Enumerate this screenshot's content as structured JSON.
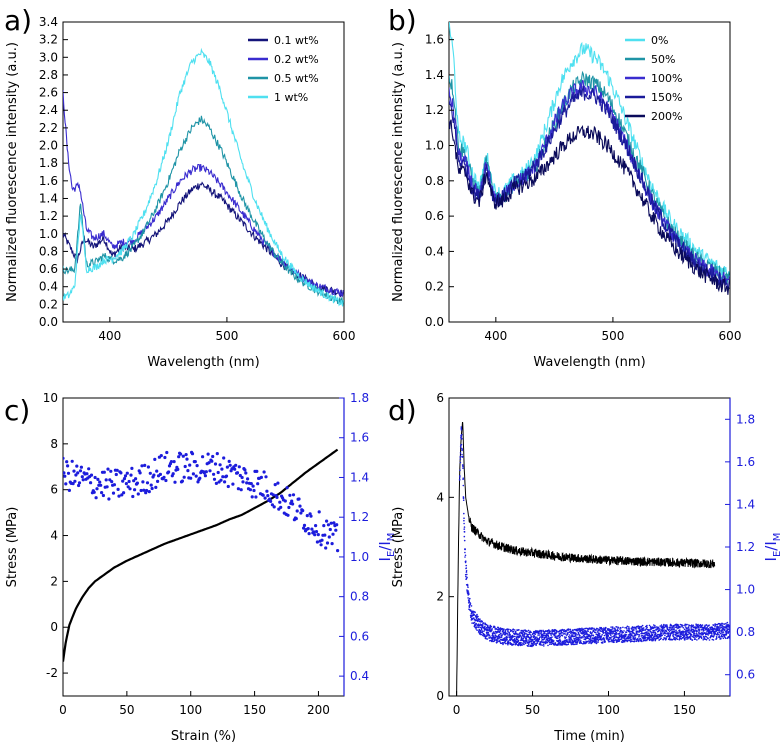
{
  "chart_data": [
    {
      "panel": "a)",
      "type": "line",
      "xlabel": "Wavelength (nm)",
      "ylabel": "Normalized fluorescence intensity (a.u.)",
      "xlim": [
        360,
        600
      ],
      "ylim": [
        0.0,
        3.4
      ],
      "xticks": [
        400,
        500,
        600
      ],
      "yticks": [
        0.0,
        0.2,
        0.4,
        0.6,
        0.8,
        1.0,
        1.2,
        1.4,
        1.6,
        1.8,
        2.0,
        2.2,
        2.4,
        2.6,
        2.8,
        3.0,
        3.2,
        3.4
      ],
      "legend_position": "top-right",
      "series": [
        {
          "name": "0.1 wt%",
          "color": "#14147a",
          "x": [
            360,
            366,
            372,
            378,
            386,
            395,
            402,
            410,
            420,
            430,
            440,
            450,
            460,
            470,
            478,
            485,
            495,
            505,
            515,
            525,
            535,
            545,
            555,
            565,
            575,
            585,
            592,
            600
          ],
          "y": [
            1.0,
            0.85,
            0.7,
            0.95,
            0.85,
            0.95,
            0.75,
            0.85,
            0.82,
            0.9,
            1.0,
            1.15,
            1.35,
            1.5,
            1.57,
            1.5,
            1.4,
            1.25,
            1.1,
            0.95,
            0.82,
            0.68,
            0.58,
            0.5,
            0.42,
            0.38,
            0.35,
            0.32
          ]
        },
        {
          "name": "0.2 wt%",
          "color": "#3a2ccf",
          "x": [
            360,
            364,
            368,
            374,
            380,
            386,
            395,
            402,
            410,
            420,
            430,
            440,
            450,
            460,
            470,
            478,
            485,
            495,
            505,
            515,
            525,
            535,
            545,
            555,
            565,
            575,
            585,
            592,
            600
          ],
          "y": [
            2.6,
            1.9,
            1.5,
            1.55,
            1.05,
            0.95,
            1.0,
            0.85,
            0.9,
            0.92,
            1.05,
            1.2,
            1.4,
            1.6,
            1.72,
            1.75,
            1.7,
            1.55,
            1.38,
            1.2,
            1.02,
            0.85,
            0.72,
            0.6,
            0.5,
            0.42,
            0.38,
            0.35,
            0.33
          ]
        },
        {
          "name": "0.5 wt%",
          "color": "#1f94a6",
          "x": [
            360,
            365,
            370,
            375,
            380,
            388,
            395,
            402,
            410,
            420,
            430,
            440,
            450,
            460,
            470,
            478,
            485,
            495,
            505,
            515,
            525,
            535,
            545,
            555,
            565,
            575,
            585,
            592,
            600
          ],
          "y": [
            0.6,
            0.58,
            0.6,
            1.35,
            0.65,
            0.68,
            0.75,
            0.7,
            0.72,
            0.85,
            1.05,
            1.3,
            1.6,
            1.95,
            2.2,
            2.3,
            2.2,
            1.95,
            1.65,
            1.35,
            1.1,
            0.88,
            0.7,
            0.55,
            0.45,
            0.37,
            0.3,
            0.26,
            0.23
          ]
        },
        {
          "name": "1 wt%",
          "color": "#4fe0f0",
          "x": [
            360,
            365,
            370,
            375,
            380,
            388,
            395,
            402,
            410,
            420,
            430,
            440,
            450,
            460,
            470,
            478,
            485,
            495,
            505,
            515,
            525,
            535,
            545,
            555,
            565,
            575,
            585,
            592,
            600
          ],
          "y": [
            0.28,
            0.3,
            0.4,
            1.25,
            0.6,
            0.62,
            0.7,
            0.72,
            0.8,
            0.98,
            1.25,
            1.6,
            2.05,
            2.6,
            2.95,
            3.05,
            2.95,
            2.6,
            2.15,
            1.72,
            1.35,
            1.05,
            0.8,
            0.62,
            0.48,
            0.38,
            0.3,
            0.25,
            0.2
          ]
        }
      ]
    },
    {
      "panel": "b)",
      "type": "line",
      "xlabel": "Wavelength (nm)",
      "ylabel": "Normalized fluorescence intensity (a.u.)",
      "xlim": [
        360,
        600
      ],
      "ylim": [
        0.0,
        1.7
      ],
      "xticks": [
        400,
        500,
        600
      ],
      "yticks": [
        0.0,
        0.2,
        0.4,
        0.6,
        0.8,
        1.0,
        1.2,
        1.4,
        1.6
      ],
      "legend_position": "top-right",
      "series": [
        {
          "name": "0%",
          "color": "#4fe0f0",
          "x": [
            360,
            364,
            368,
            374,
            380,
            386,
            392,
            398,
            405,
            415,
            425,
            435,
            445,
            455,
            465,
            475,
            485,
            495,
            505,
            515,
            525,
            535,
            545,
            555,
            565,
            575,
            585,
            592,
            600
          ],
          "y": [
            1.7,
            1.5,
            1.05,
            1.0,
            0.85,
            0.75,
            0.95,
            0.75,
            0.72,
            0.8,
            0.85,
            0.95,
            1.15,
            1.35,
            1.48,
            1.55,
            1.5,
            1.4,
            1.25,
            1.08,
            0.9,
            0.75,
            0.62,
            0.52,
            0.45,
            0.38,
            0.33,
            0.3,
            0.28
          ]
        },
        {
          "name": "50%",
          "color": "#1f94a6",
          "x": [
            360,
            364,
            368,
            374,
            380,
            386,
            392,
            398,
            405,
            415,
            425,
            435,
            445,
            455,
            465,
            475,
            485,
            495,
            505,
            515,
            525,
            535,
            545,
            555,
            565,
            575,
            585,
            592,
            600
          ],
          "y": [
            1.4,
            1.3,
            1.0,
            0.95,
            0.8,
            0.72,
            0.92,
            0.72,
            0.7,
            0.78,
            0.82,
            0.9,
            1.05,
            1.2,
            1.32,
            1.38,
            1.35,
            1.28,
            1.15,
            1.0,
            0.85,
            0.7,
            0.58,
            0.48,
            0.4,
            0.34,
            0.3,
            0.27,
            0.25
          ]
        },
        {
          "name": "100%",
          "color": "#3a2ccf",
          "x": [
            360,
            364,
            368,
            374,
            380,
            386,
            392,
            398,
            405,
            415,
            425,
            435,
            445,
            455,
            465,
            475,
            485,
            495,
            505,
            515,
            525,
            535,
            545,
            555,
            565,
            575,
            585,
            592,
            600
          ],
          "y": [
            1.3,
            1.2,
            0.95,
            0.9,
            0.78,
            0.7,
            0.9,
            0.7,
            0.7,
            0.78,
            0.82,
            0.9,
            1.05,
            1.2,
            1.3,
            1.33,
            1.3,
            1.22,
            1.1,
            0.95,
            0.8,
            0.66,
            0.55,
            0.45,
            0.38,
            0.32,
            0.28,
            0.25,
            0.22
          ]
        },
        {
          "name": "150%",
          "color": "#1a1a9a",
          "x": [
            360,
            364,
            368,
            374,
            380,
            386,
            392,
            398,
            405,
            415,
            425,
            435,
            445,
            455,
            465,
            475,
            485,
            495,
            505,
            515,
            525,
            535,
            545,
            555,
            565,
            575,
            585,
            592,
            600
          ],
          "y": [
            1.25,
            1.15,
            0.92,
            0.88,
            0.75,
            0.7,
            0.88,
            0.7,
            0.7,
            0.78,
            0.82,
            0.9,
            1.02,
            1.15,
            1.25,
            1.3,
            1.28,
            1.2,
            1.08,
            0.95,
            0.8,
            0.66,
            0.55,
            0.45,
            0.37,
            0.31,
            0.27,
            0.24,
            0.21
          ]
        },
        {
          "name": "200%",
          "color": "#0a0a5a",
          "x": [
            360,
            364,
            368,
            374,
            380,
            386,
            392,
            398,
            405,
            415,
            425,
            435,
            445,
            455,
            465,
            475,
            485,
            495,
            505,
            515,
            525,
            535,
            545,
            555,
            565,
            575,
            585,
            592,
            600
          ],
          "y": [
            1.15,
            1.05,
            0.85,
            0.85,
            0.72,
            0.68,
            0.85,
            0.68,
            0.68,
            0.75,
            0.78,
            0.82,
            0.9,
            0.98,
            1.05,
            1.08,
            1.06,
            1.0,
            0.92,
            0.82,
            0.7,
            0.58,
            0.48,
            0.4,
            0.34,
            0.28,
            0.24,
            0.21,
            0.19
          ]
        }
      ]
    },
    {
      "panel": "c)",
      "type": "scatter",
      "xlabel": "Strain (%)",
      "ylabel": "Stress (MPa)",
      "ylabel_right": "I_E/I_M",
      "xlim": [
        0,
        220
      ],
      "ylim": [
        -3,
        10
      ],
      "ylim_right": [
        0.3,
        1.8
      ],
      "xticks": [
        0,
        50,
        100,
        150,
        200
      ],
      "yticks": [
        -2,
        0,
        2,
        4,
        6,
        8,
        10
      ],
      "yticks_right": [
        0.4,
        0.6,
        0.8,
        1.0,
        1.2,
        1.4,
        1.6,
        1.8
      ],
      "series": [
        {
          "name": "Stress",
          "axis": "left",
          "color": "#000000",
          "style": "line",
          "x": [
            0,
            2,
            5,
            10,
            15,
            20,
            25,
            30,
            40,
            50,
            60,
            70,
            80,
            90,
            100,
            110,
            120,
            130,
            140,
            150,
            160,
            170,
            180,
            190,
            200,
            210,
            215
          ],
          "y": [
            -1.5,
            -0.7,
            0.1,
            0.8,
            1.3,
            1.7,
            2.0,
            2.2,
            2.6,
            2.9,
            3.15,
            3.4,
            3.65,
            3.85,
            4.05,
            4.25,
            4.45,
            4.7,
            4.9,
            5.2,
            5.5,
            5.85,
            6.3,
            6.75,
            7.15,
            7.55,
            7.75
          ]
        },
        {
          "name": "I_E/I_M",
          "axis": "right",
          "color": "#1c1cdc",
          "style": "scatter",
          "x": [
            0,
            20,
            40,
            60,
            80,
            100,
            120,
            140,
            160,
            180,
            200,
            215
          ],
          "y": [
            1.42,
            1.38,
            1.36,
            1.38,
            1.45,
            1.45,
            1.45,
            1.4,
            1.35,
            1.25,
            1.15,
            1.08
          ]
        }
      ]
    },
    {
      "panel": "d)",
      "type": "scatter",
      "xlabel": "Time (min)",
      "ylabel": "Stress (MPa)",
      "ylabel_right": "I_E/I_M",
      "xlim": [
        -5,
        180
      ],
      "ylim": [
        0,
        6
      ],
      "ylim_right": [
        0.5,
        1.9
      ],
      "xticks": [
        0,
        50,
        100,
        150
      ],
      "yticks": [
        0,
        2,
        4,
        6
      ],
      "yticks_right": [
        0.6,
        0.8,
        1.0,
        1.2,
        1.4,
        1.6,
        1.8
      ],
      "series": [
        {
          "name": "Stress",
          "axis": "left",
          "color": "#000000",
          "style": "line",
          "x": [
            0,
            1,
            2,
            3,
            4,
            5,
            6,
            8,
            10,
            15,
            20,
            30,
            40,
            50,
            70,
            90,
            110,
            130,
            150,
            170
          ],
          "y": [
            0,
            2.5,
            4.5,
            5.2,
            5.55,
            4.6,
            4.0,
            3.6,
            3.4,
            3.25,
            3.12,
            3.0,
            2.92,
            2.88,
            2.8,
            2.75,
            2.72,
            2.7,
            2.68,
            2.66
          ]
        },
        {
          "name": "I_E/I_M",
          "axis": "right",
          "color": "#1c1cdc",
          "style": "scatter",
          "x": [
            2,
            3,
            4,
            5,
            6,
            8,
            10,
            15,
            20,
            30,
            50,
            80,
            110,
            140,
            170,
            180
          ],
          "y": [
            1.5,
            1.75,
            1.6,
            1.3,
            1.1,
            0.95,
            0.88,
            0.83,
            0.8,
            0.78,
            0.77,
            0.78,
            0.79,
            0.8,
            0.8,
            0.81
          ]
        }
      ]
    }
  ]
}
